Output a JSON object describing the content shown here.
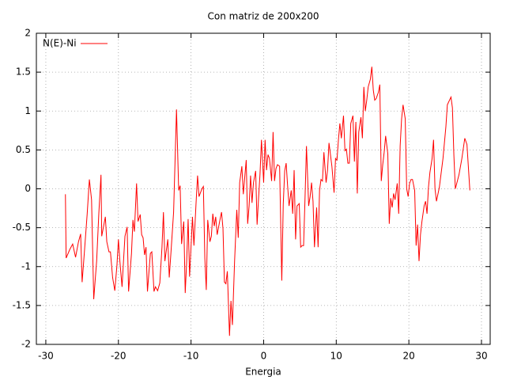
{
  "chart_data": {
    "type": "line",
    "title": "Con matriz de 200x200",
    "x_label": "Energia",
    "legend": "top-left",
    "grid": true,
    "xlim": [
      -31.3,
      31.2
    ],
    "ylim": [
      -2,
      2
    ],
    "xticks": [
      -30,
      -20,
      -10,
      0,
      10,
      20,
      30
    ],
    "yticks": [
      -2,
      -1.5,
      -1,
      -0.5,
      0,
      0.5,
      1,
      1.5,
      2
    ],
    "x": [
      -27.3,
      -27.2,
      -26.7,
      -26.3,
      -25.9,
      -25.5,
      -25.2,
      -25.0,
      -24.7,
      -24.3,
      -24.0,
      -23.7,
      -23.4,
      -23.0,
      -22.7,
      -22.4,
      -22.3,
      -22.0,
      -21.8,
      -21.6,
      -21.3,
      -21.1,
      -20.8,
      -20.5,
      -20.2,
      -20.0,
      -19.8,
      -19.5,
      -19.3,
      -19.1,
      -18.8,
      -18.6,
      -18.2,
      -18.0,
      -17.8,
      -17.5,
      -17.3,
      -17.0,
      -16.8,
      -16.6,
      -16.4,
      -16.2,
      -16.0,
      -15.6,
      -15.4,
      -15.1,
      -14.9,
      -14.6,
      -14.3,
      -14.0,
      -13.8,
      -13.6,
      -13.2,
      -13.0,
      -12.7,
      -12.4,
      -12.0,
      -11.7,
      -11.5,
      -11.3,
      -11.0,
      -10.8,
      -10.6,
      -10.4,
      -10.2,
      -9.8,
      -9.6,
      -9.3,
      -9.1,
      -8.9,
      -8.5,
      -8.3,
      -8.1,
      -7.9,
      -7.7,
      -7.4,
      -7.2,
      -7.0,
      -6.8,
      -6.6,
      -6.4,
      -6.0,
      -5.8,
      -5.6,
      -5.4,
      -5.2,
      -5.0,
      -4.7,
      -4.5,
      -4.3,
      -4.0,
      -3.7,
      -3.5,
      -3.3,
      -3.0,
      -2.8,
      -2.4,
      -2.2,
      -2.0,
      -1.8,
      -1.6,
      -1.4,
      -1.1,
      -0.9,
      -0.7,
      -0.5,
      -0.3,
      0.0,
      0.2,
      0.4,
      0.6,
      0.8,
      1.1,
      1.3,
      1.5,
      1.7,
      1.9,
      2.2,
      2.5,
      2.7,
      2.9,
      3.1,
      3.3,
      3.5,
      3.8,
      4.0,
      4.2,
      4.4,
      4.6,
      4.9,
      5.1,
      5.3,
      5.5,
      5.7,
      5.9,
      6.2,
      6.4,
      6.6,
      6.8,
      7.0,
      7.3,
      7.5,
      7.7,
      7.9,
      8.1,
      8.3,
      8.6,
      8.8,
      9.0,
      9.2,
      9.4,
      9.7,
      9.9,
      10.1,
      10.3,
      10.5,
      10.7,
      11.0,
      11.2,
      11.4,
      11.6,
      11.8,
      12.0,
      12.3,
      12.5,
      12.7,
      12.9,
      13.1,
      13.4,
      13.6,
      13.8,
      14.0,
      14.2,
      14.4,
      14.7,
      14.9,
      15.1,
      15.3,
      15.5,
      15.8,
      16.0,
      16.2,
      16.4,
      16.6,
      16.8,
      17.1,
      17.3,
      17.5,
      17.7,
      17.9,
      18.1,
      18.4,
      18.6,
      18.8,
      19.0,
      19.2,
      19.5,
      19.7,
      19.9,
      20.1,
      20.3,
      20.5,
      20.8,
      21.0,
      21.2,
      21.4,
      21.6,
      21.8,
      22.1,
      22.3,
      22.5,
      22.7,
      22.9,
      23.2,
      23.4,
      23.6,
      23.8,
      24.2,
      24.7,
      25.1,
      25.3,
      25.8,
      26.0,
      26.2,
      26.4,
      26.9,
      27.3,
      27.7,
      28.0,
      28.4
    ],
    "series": [
      {
        "name": "N(E)-Ni",
        "color": "#ff0000",
        "values": [
          -0.07,
          -0.89,
          -0.78,
          -0.71,
          -0.88,
          -0.68,
          -0.58,
          -1.2,
          -0.83,
          -0.32,
          0.12,
          -0.14,
          -1.42,
          -0.93,
          -0.32,
          0.18,
          -0.61,
          -0.46,
          -0.36,
          -0.68,
          -0.81,
          -0.81,
          -1.14,
          -1.31,
          -0.98,
          -0.65,
          -0.93,
          -1.26,
          -0.93,
          -0.61,
          -0.49,
          -1.32,
          -0.83,
          -0.4,
          -0.55,
          0.07,
          -0.42,
          -0.33,
          -0.59,
          -0.63,
          -0.85,
          -0.75,
          -1.32,
          -0.83,
          -0.81,
          -1.32,
          -1.26,
          -1.31,
          -1.21,
          -0.75,
          -0.3,
          -0.93,
          -0.65,
          -1.14,
          -0.73,
          -0.3,
          1.02,
          -0.02,
          0.04,
          -0.71,
          -0.42,
          -1.34,
          -0.93,
          -0.39,
          -1.13,
          -0.36,
          -0.73,
          -0.17,
          0.17,
          -0.1,
          0.0,
          0.03,
          -0.89,
          -1.3,
          -0.4,
          -0.68,
          -0.61,
          -0.32,
          -0.48,
          -0.36,
          -0.59,
          -0.39,
          -0.3,
          -0.51,
          -1.2,
          -1.22,
          -1.06,
          -1.89,
          -1.44,
          -1.75,
          -0.93,
          -0.27,
          -0.63,
          0.08,
          0.29,
          -0.07,
          0.37,
          -0.45,
          -0.22,
          0.17,
          -0.18,
          0.08,
          0.23,
          -0.46,
          -0.12,
          0.19,
          0.63,
          0.08,
          0.63,
          0.24,
          0.44,
          0.39,
          0.1,
          0.73,
          0.1,
          0.26,
          0.31,
          0.29,
          -1.18,
          -0.2,
          0.23,
          0.33,
          0.04,
          -0.22,
          -0.02,
          -0.32,
          0.24,
          -0.65,
          -0.22,
          -0.19,
          -0.75,
          -0.73,
          -0.73,
          -0.12,
          0.55,
          -0.22,
          -0.1,
          0.08,
          -0.16,
          -0.75,
          -0.24,
          -0.75,
          -0.02,
          0.12,
          0.1,
          0.47,
          0.08,
          0.24,
          0.59,
          0.44,
          0.29,
          -0.05,
          0.39,
          0.37,
          0.63,
          0.84,
          0.65,
          0.94,
          0.49,
          0.51,
          0.33,
          0.33,
          0.84,
          0.94,
          0.35,
          0.86,
          -0.06,
          0.73,
          0.92,
          0.65,
          1.31,
          1.0,
          1.14,
          1.31,
          1.41,
          1.57,
          1.27,
          1.14,
          1.16,
          1.24,
          1.34,
          0.1,
          0.31,
          0.47,
          0.68,
          0.45,
          -0.45,
          -0.12,
          -0.24,
          -0.06,
          -0.14,
          0.07,
          -0.32,
          0.55,
          0.9,
          1.08,
          0.9,
          0.0,
          -0.1,
          0.07,
          0.12,
          0.12,
          -0.02,
          -0.73,
          -0.46,
          -0.93,
          -0.59,
          -0.42,
          -0.22,
          -0.16,
          -0.32,
          0.02,
          0.21,
          0.39,
          0.63,
          0.0,
          -0.16,
          0.02,
          0.39,
          0.8,
          1.08,
          1.18,
          1.04,
          0.43,
          0.0,
          0.18,
          0.39,
          0.65,
          0.57,
          -0.02
        ]
      }
    ]
  }
}
